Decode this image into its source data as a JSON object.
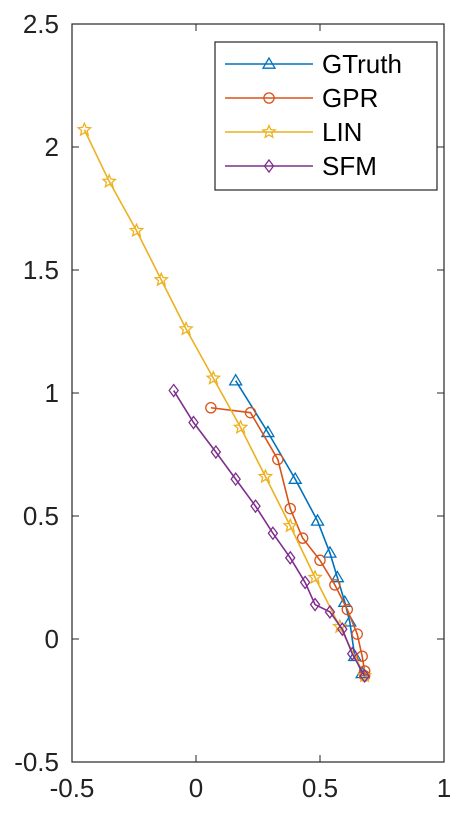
{
  "chart_data": {
    "type": "line",
    "title": "",
    "xlabel": "",
    "ylabel": "",
    "xlim": [
      -0.5,
      1
    ],
    "ylim": [
      -0.5,
      2.5
    ],
    "x_ticks": [
      -0.5,
      0,
      0.5,
      1
    ],
    "y_ticks": [
      -0.5,
      0,
      0.5,
      1,
      1.5,
      2,
      2.5
    ],
    "x_tick_labels": [
      "-0.5",
      "0",
      "0.5",
      "1"
    ],
    "y_tick_labels": [
      "-0.5",
      "0",
      "0.5",
      "1",
      "1.5",
      "2",
      "2.5"
    ],
    "grid": false,
    "legend_position": "top-right",
    "series": [
      {
        "name": "GTruth",
        "color": "#0072BD",
        "marker": "triangle",
        "x": [
          0.16,
          0.29,
          0.4,
          0.49,
          0.54,
          0.57,
          0.6,
          0.62,
          0.64,
          0.67
        ],
        "y": [
          1.05,
          0.84,
          0.65,
          0.48,
          0.35,
          0.25,
          0.15,
          0.07,
          -0.07,
          -0.14
        ]
      },
      {
        "name": "GPR",
        "color": "#D95319",
        "marker": "circle",
        "x": [
          0.06,
          0.22,
          0.33,
          0.38,
          0.43,
          0.5,
          0.56,
          0.61,
          0.65,
          0.67,
          0.68,
          0.68
        ],
        "y": [
          0.94,
          0.92,
          0.73,
          0.53,
          0.41,
          0.32,
          0.22,
          0.12,
          0.02,
          -0.07,
          -0.13,
          -0.15
        ]
      },
      {
        "name": "LIN",
        "color": "#EDB120",
        "marker": "star",
        "x": [
          -0.45,
          -0.35,
          -0.24,
          -0.14,
          -0.04,
          0.07,
          0.18,
          0.28,
          0.38,
          0.48,
          0.58,
          0.68
        ],
        "y": [
          2.07,
          1.86,
          1.66,
          1.46,
          1.26,
          1.06,
          0.86,
          0.66,
          0.46,
          0.25,
          0.05,
          -0.15
        ]
      },
      {
        "name": "SFM",
        "color": "#7E2F8E",
        "marker": "diamond",
        "x": [
          -0.09,
          -0.01,
          0.08,
          0.16,
          0.24,
          0.31,
          0.38,
          0.44,
          0.48,
          0.54,
          0.59,
          0.63,
          0.68
        ],
        "y": [
          1.01,
          0.88,
          0.76,
          0.65,
          0.54,
          0.43,
          0.33,
          0.23,
          0.14,
          0.11,
          0.04,
          -0.06,
          -0.15
        ]
      }
    ]
  }
}
